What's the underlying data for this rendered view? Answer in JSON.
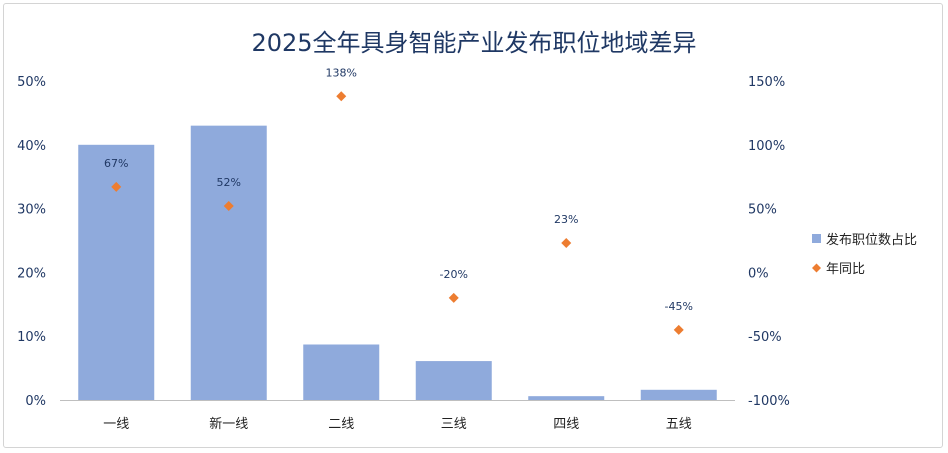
{
  "chart_data": {
    "type": "bar+scatter",
    "title": "2025全年具身智能产业发布职位地域差异",
    "categories": [
      "一线",
      "新一线",
      "二线",
      "三线",
      "四线",
      "五线"
    ],
    "series": [
      {
        "name": "发布职位数占比",
        "type": "bar",
        "axis": "left",
        "values": [
          40,
          43,
          8.7,
          6.1,
          0.6,
          1.6
        ]
      },
      {
        "name": "年同比",
        "type": "scatter",
        "axis": "right",
        "values": [
          67,
          52,
          138,
          -20,
          23,
          -45
        ]
      }
    ],
    "data_labels": {
      "年同比": [
        "67%",
        "52%",
        "138%",
        "-20%",
        "23%",
        "-45%"
      ]
    },
    "y_left": {
      "ylim": [
        0,
        50
      ],
      "ticks": [
        "0%",
        "10%",
        "20%",
        "30%",
        "40%",
        "50%"
      ]
    },
    "y_right": {
      "ylim": [
        -100,
        150
      ],
      "ticks": [
        "-100%",
        "-50%",
        "0%",
        "50%",
        "100%",
        "150%"
      ]
    },
    "grid": false,
    "legend_position": "right",
    "colors": {
      "bar": "#8faadc",
      "scatter": "#ed7d31",
      "title": "#1f3864",
      "axis_text": "#203864"
    }
  }
}
